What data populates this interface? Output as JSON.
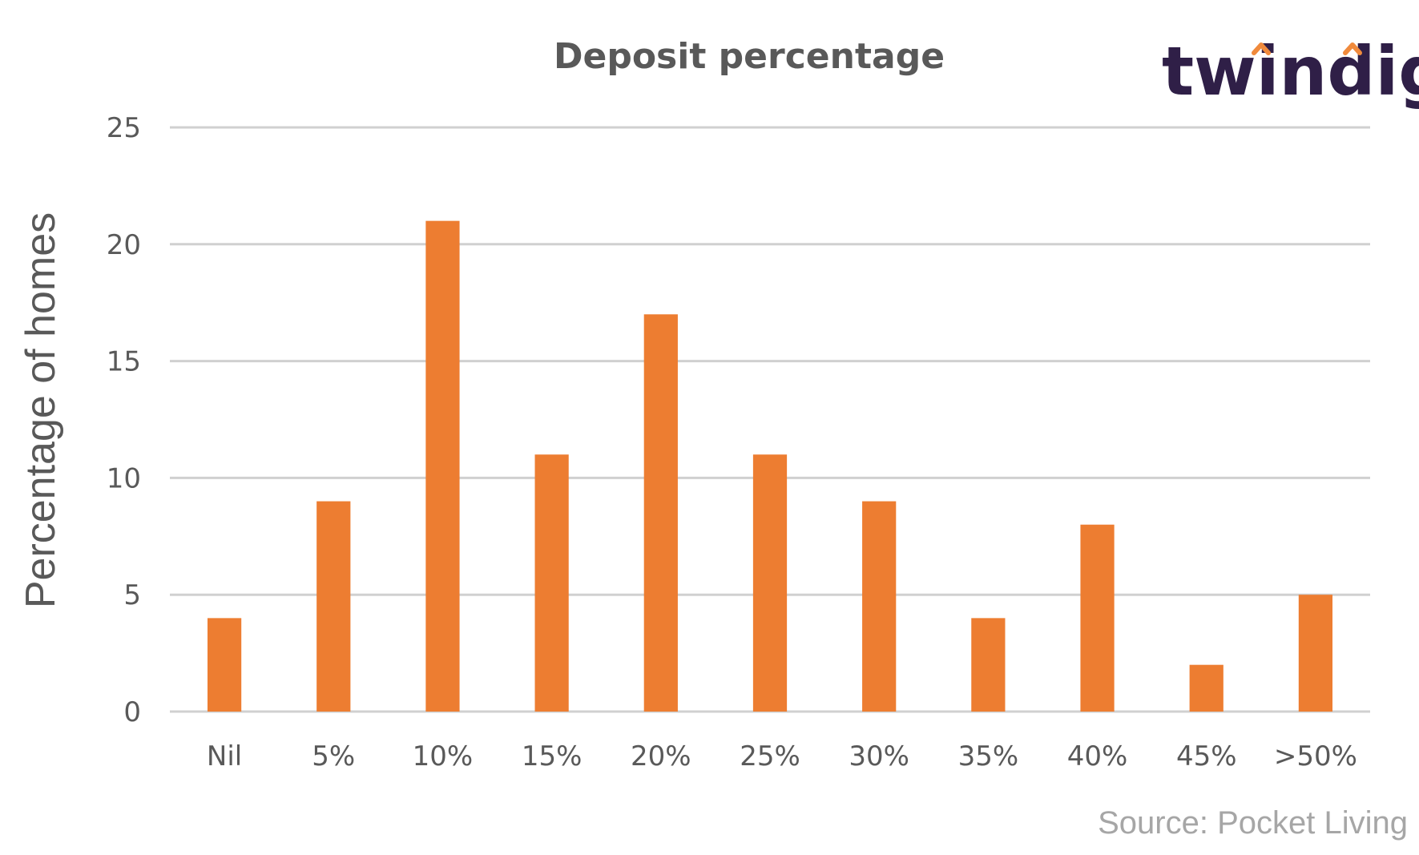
{
  "logo": {
    "text": "twindig",
    "accent_color": "#f08a3c",
    "text_color": "#2f1f47"
  },
  "source": "Source: Pocket Living",
  "colors": {
    "bar": "#ed7d31",
    "grid": "#d0d0d0",
    "text": "#595959"
  },
  "chart_data": {
    "type": "bar",
    "title": "Deposit percentage",
    "xlabel": "",
    "ylabel": "Percentage of homes",
    "categories": [
      "Nil",
      "5%",
      "10%",
      "15%",
      "20%",
      "25%",
      "30%",
      "35%",
      "40%",
      "45%",
      ">50%"
    ],
    "values": [
      4,
      9,
      21,
      11,
      17,
      11,
      9,
      4,
      8,
      2,
      5
    ],
    "ylim": [
      0,
      25
    ],
    "yticks": [
      0,
      5,
      10,
      15,
      20,
      25
    ],
    "grid": true,
    "legend": "none"
  }
}
